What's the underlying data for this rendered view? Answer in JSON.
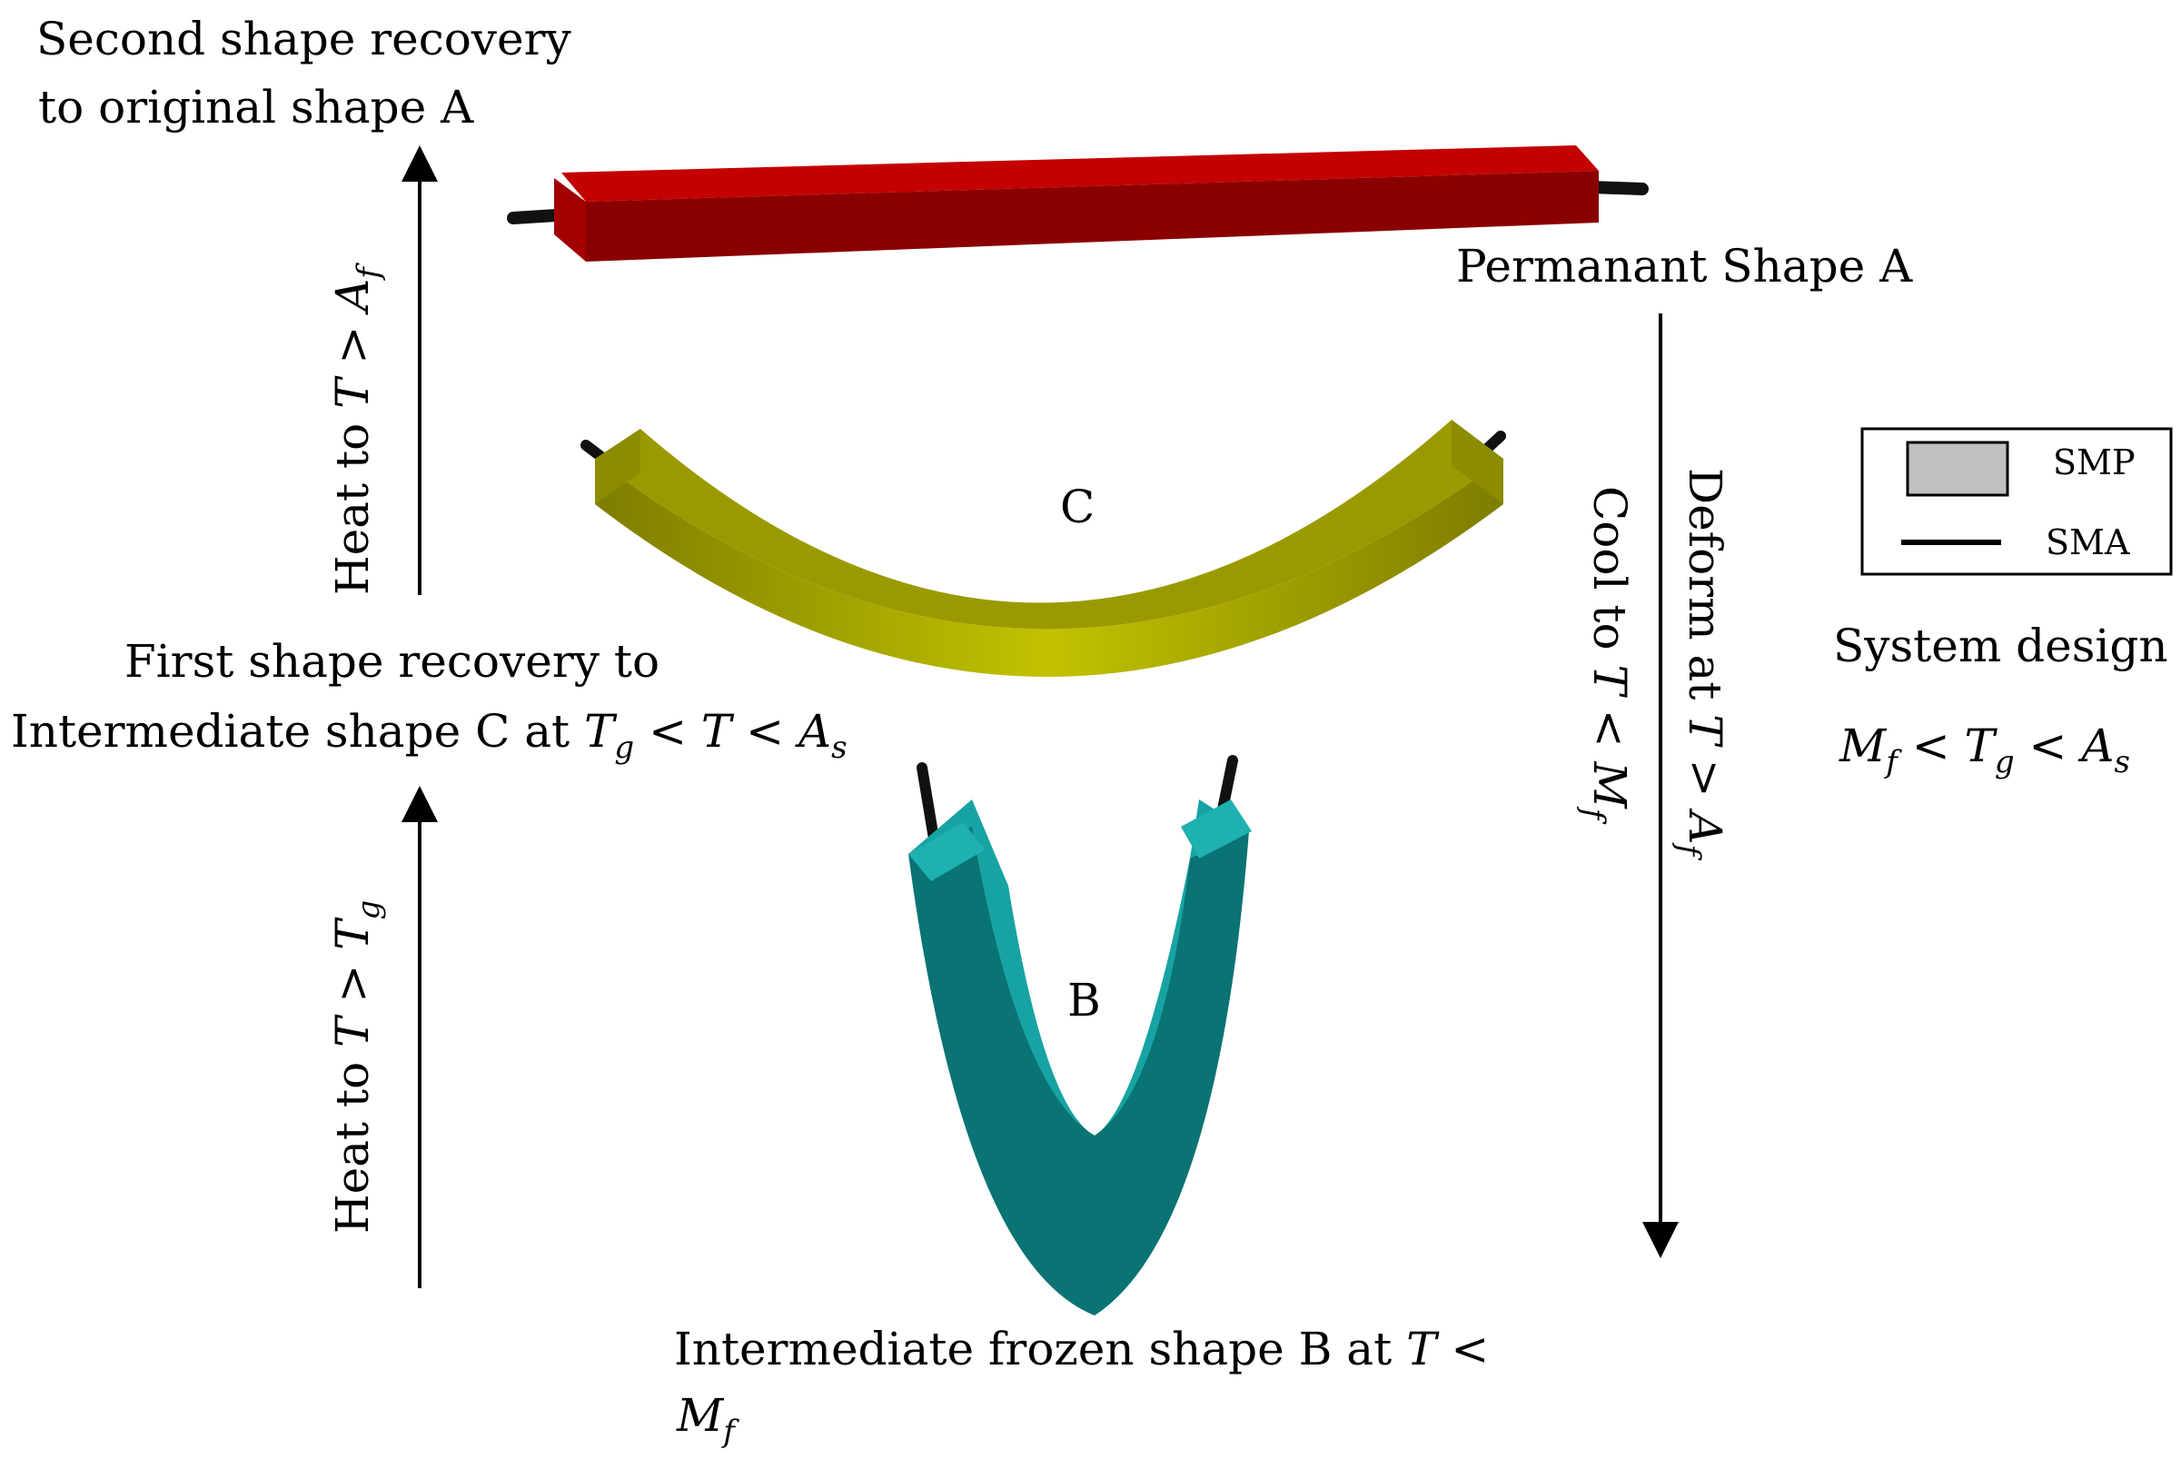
{
  "labels": {
    "second_recovery_line1": "Second shape recovery",
    "second_recovery_line2": "to original shape A",
    "permanent_shape": "Permanant Shape A",
    "shape_c_letter": "C",
    "shape_b_letter": "B",
    "first_recovery_line1": "First shape recovery to",
    "first_recovery_line2_prefix": "Intermediate shape C at ",
    "frozen_line1_prefix": "Intermediate frozen shape B at ",
    "heat_to_prefix": "Heat to ",
    "cool_to_prefix": "Cool to ",
    "deform_at_prefix": "Deform at ",
    "system_design": "System design"
  },
  "symbols": {
    "T": "T",
    "A": "A",
    "M": "M",
    "g": "g",
    "f": "f",
    "s": "s",
    "lt": "<",
    "gt": ">"
  },
  "legend": {
    "smp_label": "SMP",
    "sma_label": "SMA",
    "smp_color": "#c0c0c0",
    "sma_color": "#000000"
  },
  "colors": {
    "shape_a_red": "#b00000",
    "shape_c_olive": "#a8a800",
    "shape_b_teal": "#0a7f80"
  }
}
